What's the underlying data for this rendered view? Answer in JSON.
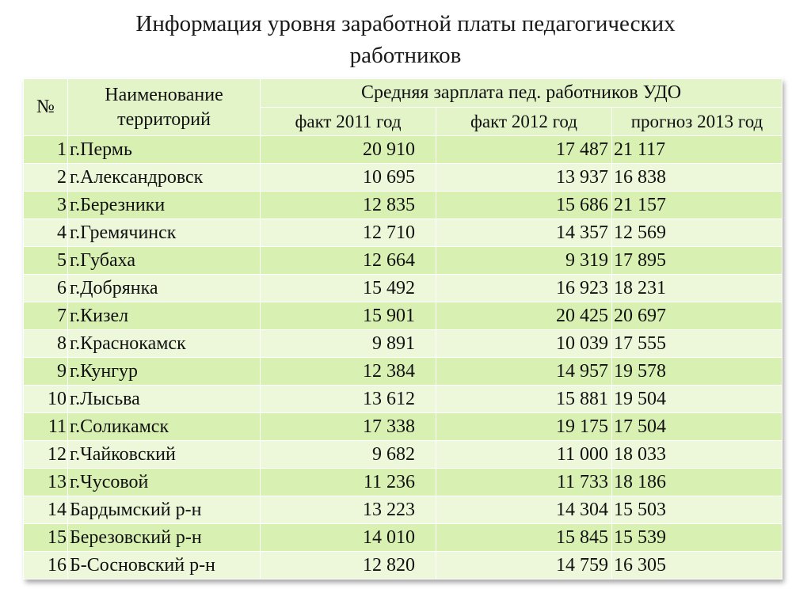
{
  "title": {
    "line1": "Информация уровня заработной платы педагогических",
    "line2": "работников"
  },
  "table": {
    "headers": {
      "number": "№",
      "name": "Наименование территорий",
      "group": "Средняя зарплата  пед. работников УДО",
      "fact2011": "факт 2011 год",
      "fact2012": "факт 2012 год",
      "forecast2013": "прогноз 2013 год"
    },
    "rows": [
      {
        "n": "1",
        "name": "г.Пермь",
        "v2011": "20 910",
        "v2012": "17 487",
        "v2013": "21 117"
      },
      {
        "n": "2",
        "name": "г.Александровск",
        "v2011": "10 695",
        "v2012": "13 937",
        "v2013": "16 838"
      },
      {
        "n": "3",
        "name": "г.Березники",
        "v2011": "12 835",
        "v2012": "15 686",
        "v2013": "21 157"
      },
      {
        "n": "4",
        "name": "г.Гремячинск",
        "v2011": "12 710",
        "v2012": "14 357",
        "v2013": "12 569"
      },
      {
        "n": "5",
        "name": "г.Губаха",
        "v2011": "12 664",
        "v2012": "9 319",
        "v2013": "17 895"
      },
      {
        "n": "6",
        "name": "г.Добрянка",
        "v2011": "15 492",
        "v2012": "16 923",
        "v2013": "18 231"
      },
      {
        "n": "7",
        "name": "г.Кизел",
        "v2011": "15 901",
        "v2012": "20 425",
        "v2013": "20 697"
      },
      {
        "n": "8",
        "name": "г.Краснокамск",
        "v2011": "9 891",
        "v2012": "10 039",
        "v2013": "17 555"
      },
      {
        "n": "9",
        "name": "г.Кунгур",
        "v2011": "12 384",
        "v2012": "14 957",
        "v2013": "19 578"
      },
      {
        "n": "10",
        "name": "г.Лысьва",
        "v2011": "13 612",
        "v2012": "15 881",
        "v2013": "19 504"
      },
      {
        "n": "11",
        "name": "г.Соликамск",
        "v2011": "17 338",
        "v2012": "19 175",
        "v2013": "17 504"
      },
      {
        "n": "12",
        "name": "г.Чайковский",
        "v2011": "9 682",
        "v2012": "11 000",
        "v2013": "18 033"
      },
      {
        "n": "13",
        "name": "г.Чусовой",
        "v2011": "11 236",
        "v2012": "11 733",
        "v2013": "18 186"
      },
      {
        "n": "14",
        "name": "Бардымский р-н",
        "v2011": "13 223",
        "v2012": "14 304",
        "v2013": "15 503"
      },
      {
        "n": "15",
        "name": "Березовский р-н",
        "v2011": "14 010",
        "v2012": "15 845",
        "v2013": "15 539"
      },
      {
        "n": "16",
        "name": "Б-Сосновский р-н",
        "v2011": "12 820",
        "v2012": "14 759",
        "v2013": "16 305"
      }
    ]
  }
}
